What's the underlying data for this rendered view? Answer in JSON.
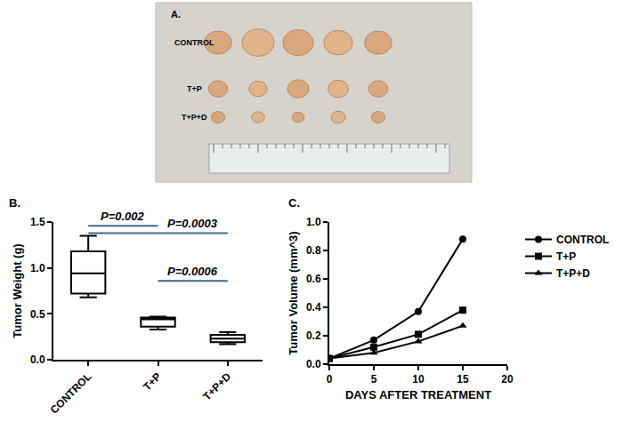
{
  "photo": {
    "label": "A.",
    "rows": [
      "CONTROL",
      "T+P",
      "T+P+D"
    ]
  },
  "chart_data": [
    {
      "type": "box",
      "panel": "B.",
      "categories": [
        "CONTROL",
        "T+P",
        "T+P+D"
      ],
      "y_label": "Tumor Weight (g)",
      "min": [
        0.68,
        0.33,
        0.17
      ],
      "q1": [
        0.72,
        0.36,
        0.19
      ],
      "median": [
        0.94,
        0.44,
        0.23
      ],
      "q3": [
        1.18,
        0.46,
        0.27
      ],
      "max": [
        1.35,
        0.47,
        0.3
      ],
      "color": "#000000",
      "ylim": [
        0,
        1.5
      ],
      "yticks": [
        {
          "value": 0,
          "label": "0.0"
        },
        0.5,
        {
          "value": 1,
          "label": "1.0"
        },
        1.5
      ],
      "grid": false,
      "annotations": [
        {
          "text": "P=0.002",
          "from": "CONTROL",
          "to": "T+P",
          "y": 1.46,
          "color": "#3a6d8c"
        },
        {
          "text": "P=0.0003",
          "from": "CONTROL",
          "to": "T+P+D",
          "y": 1.38,
          "color": "#3a6d8c"
        },
        {
          "text": "P=0.0006",
          "from": "T+P",
          "to": "T+P+D",
          "y": 0.86,
          "color": "#3a6d8c"
        }
      ]
    },
    {
      "type": "line",
      "panel": "C.",
      "x": [
        0,
        5,
        10,
        15
      ],
      "x_label": "DAYS AFTER TREATMENT",
      "y_label": "Tumor Volume (mm^3)",
      "series": [
        {
          "name": "CONTROL",
          "color": "#000000",
          "marker": "circle",
          "values": [
            0.04,
            0.17,
            0.37,
            0.88
          ]
        },
        {
          "name": "T+P",
          "color": "#000000",
          "marker": "square",
          "values": [
            0.04,
            0.12,
            0.21,
            0.38
          ]
        },
        {
          "name": "T+P+D",
          "color": "#000000",
          "marker": "triangle-up",
          "values": [
            0.04,
            0.08,
            0.16,
            0.27
          ]
        }
      ],
      "xlim": [
        0,
        20
      ],
      "xticks": [
        0,
        5,
        10,
        15,
        20
      ],
      "ylim": [
        0,
        1.0
      ],
      "yticks": [
        {
          "value": 0,
          "label": "0.0"
        },
        0.2,
        0.4,
        0.6,
        0.8,
        {
          "value": 1,
          "label": "1.0"
        }
      ],
      "grid": false,
      "legend": "right"
    }
  ]
}
